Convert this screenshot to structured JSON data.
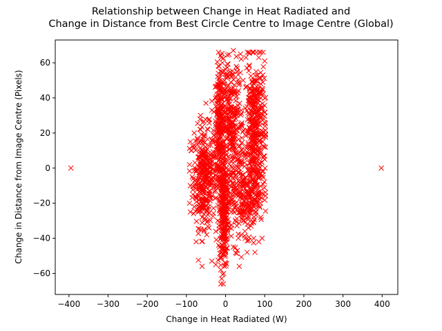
{
  "chart_data": {
    "type": "scatter",
    "title_lines": [
      "Relationship between Change in Heat Radiated and",
      "Change in Distance from Best Circle Centre to Image Centre (Global)"
    ],
    "xlabel": "Change in Heat Radiated (W)",
    "ylabel": "Change in Distance from Image Centre (Pixels)",
    "xlim": [
      -435,
      440
    ],
    "ylim": [
      -72,
      73
    ],
    "xticks": [
      -400,
      -300,
      -200,
      -100,
      0,
      100,
      200,
      300,
      400
    ],
    "yticks": [
      -60,
      -40,
      -20,
      0,
      20,
      40,
      60
    ],
    "grid": false,
    "legend": "none",
    "marker": "x",
    "color": "#ff0000",
    "points": [
      [
        -395,
        0
      ],
      [
        398,
        0
      ],
      [
        20,
        67
      ],
      [
        38,
        65
      ],
      [
        52,
        63
      ],
      [
        85,
        63
      ],
      [
        100,
        61
      ],
      [
        -8,
        60
      ],
      [
        60,
        58
      ],
      [
        30,
        57
      ],
      [
        -10,
        55
      ],
      [
        78,
        55
      ],
      [
        5,
        52
      ],
      [
        45,
        50
      ],
      [
        -20,
        48
      ],
      [
        90,
        48
      ],
      [
        -15,
        42
      ],
      [
        62,
        40
      ],
      [
        -50,
        37
      ],
      [
        -35,
        33
      ],
      [
        80,
        32
      ],
      [
        -65,
        28
      ],
      [
        -58,
        26
      ],
      [
        100,
        26
      ],
      [
        -45,
        22
      ],
      [
        -80,
        20
      ],
      [
        -72,
        17
      ],
      [
        -90,
        15
      ],
      [
        -88,
        10
      ],
      [
        -60,
        8
      ],
      [
        -30,
        6
      ],
      [
        35,
        4
      ],
      [
        -92,
        2
      ],
      [
        -75,
        -2
      ],
      [
        -85,
        -5
      ],
      [
        -40,
        -8
      ],
      [
        -90,
        -10
      ],
      [
        -55,
        -14
      ],
      [
        60,
        -15
      ],
      [
        -92,
        -20
      ],
      [
        -80,
        -22
      ],
      [
        -70,
        -25
      ],
      [
        -60,
        -28
      ],
      [
        90,
        -28
      ],
      [
        -90,
        -25
      ],
      [
        -55,
        -35
      ],
      [
        -48,
        -38
      ],
      [
        40,
        -38
      ],
      [
        50,
        -40
      ],
      [
        -75,
        -42
      ],
      [
        72,
        -40
      ],
      [
        85,
        -42
      ],
      [
        20,
        -45
      ],
      [
        -15,
        -45
      ],
      [
        30,
        -47
      ],
      [
        55,
        -48
      ],
      [
        75,
        -48
      ],
      [
        -35,
        -53
      ],
      [
        -25,
        -55
      ],
      [
        35,
        -56
      ],
      [
        -60,
        -56
      ],
      [
        -12,
        -58
      ],
      [
        -5,
        -60
      ],
      [
        -10,
        -63
      ],
      [
        -12,
        -66
      ],
      [
        80,
        -20
      ],
      [
        88,
        -18
      ],
      [
        45,
        -30
      ],
      [
        65,
        -33
      ],
      [
        15,
        -25
      ],
      [
        25,
        -15
      ],
      [
        70,
        10
      ],
      [
        85,
        5
      ],
      [
        95,
        15
      ],
      [
        40,
        25
      ],
      [
        55,
        35
      ],
      [
        75,
        45
      ],
      [
        10,
        30
      ],
      [
        -25,
        15
      ],
      [
        -40,
        0
      ],
      [
        -20,
        -30
      ],
      [
        10,
        -10
      ]
    ],
    "clusters": [
      {
        "cx": -55,
        "cy": -5,
        "sx": 14,
        "sy": 14,
        "n": 320
      },
      {
        "cx": -15,
        "cy": 20,
        "sx": 7,
        "sy": 18,
        "n": 260
      },
      {
        "cx": -5,
        "cy": -25,
        "sx": 5,
        "sy": 16,
        "n": 260
      },
      {
        "cx": 15,
        "cy": 25,
        "sx": 15,
        "sy": 18,
        "n": 280
      },
      {
        "cx": 75,
        "cy": 25,
        "sx": 13,
        "sy": 18,
        "n": 320
      },
      {
        "cx": 70,
        "cy": -10,
        "sx": 14,
        "sy": 14,
        "n": 160
      },
      {
        "cx": 35,
        "cy": -15,
        "sx": 18,
        "sy": 14,
        "n": 160
      }
    ]
  }
}
